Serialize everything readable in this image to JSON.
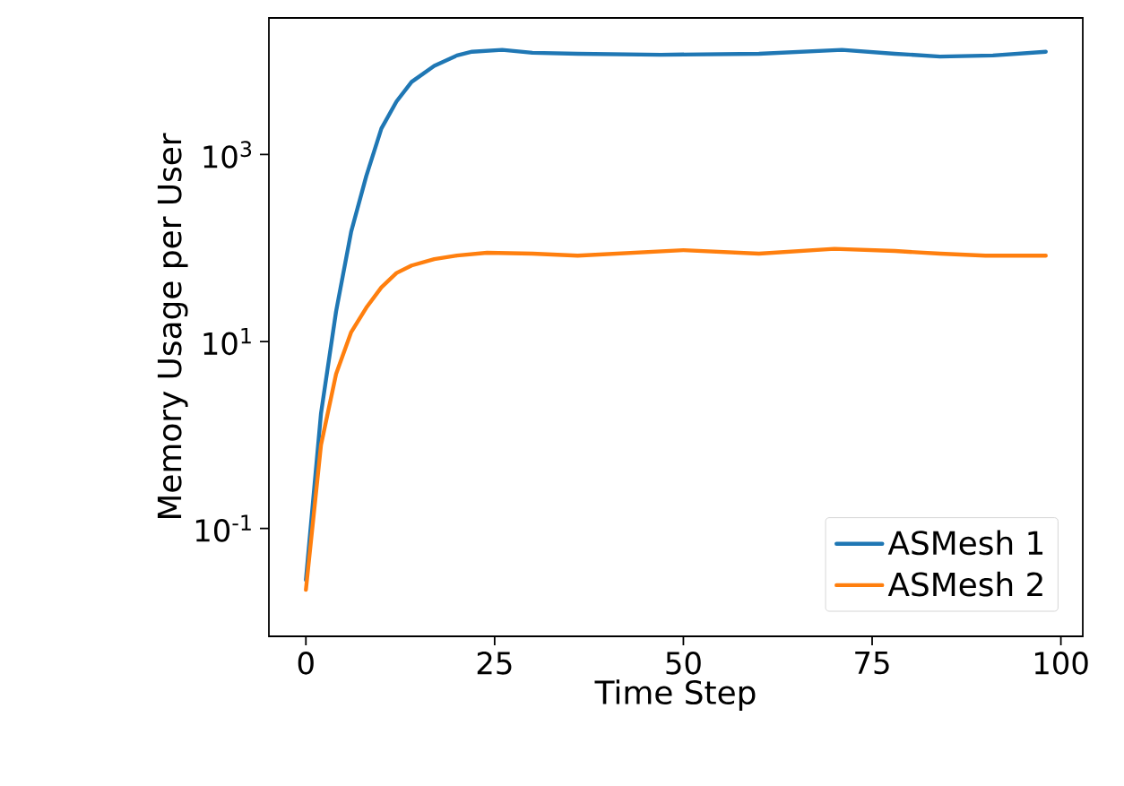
{
  "chart_data": {
    "type": "line",
    "xlabel": "Time Step",
    "ylabel": "Memory Usage per User",
    "log": "y",
    "xlim": [
      -4.9,
      102.9
    ],
    "ylim": [
      0.007,
      29000
    ],
    "xticks": [
      0,
      25,
      50,
      75,
      100
    ],
    "yticks": [
      {
        "value": 0.1,
        "label": "10$^{-1}$"
      },
      {
        "value": 10,
        "label": "10$^{1}$"
      },
      {
        "value": 1000,
        "label": "10$^{3}$"
      }
    ],
    "legend": "bottom right",
    "grid": false,
    "marker": "none",
    "line_style": "solid",
    "series": [
      {
        "name": "ASMesh 1",
        "color": "#1f77b4",
        "x": [
          0,
          2,
          4,
          6,
          8,
          10,
          12,
          14,
          17,
          20,
          22,
          26,
          30,
          36,
          47,
          60,
          71,
          78,
          84,
          91,
          98
        ],
        "values": [
          0.028,
          1.7,
          21,
          150,
          590,
          1900,
          3700,
          6000,
          8900,
          11500,
          12600,
          13200,
          12300,
          12000,
          11700,
          12000,
          13200,
          12000,
          11200,
          11500,
          12600
        ]
      },
      {
        "name": "ASMesh 2",
        "color": "#ff7f0e",
        "x": [
          0,
          2,
          4,
          6,
          8,
          10,
          12,
          14,
          17,
          20,
          24,
          30,
          36,
          50,
          60,
          70,
          78,
          84,
          90,
          98
        ],
        "values": [
          0.022,
          0.78,
          4.5,
          12.6,
          23,
          38,
          54,
          65,
          76,
          83,
          89,
          87,
          83,
          95,
          87,
          98,
          93,
          87,
          83,
          83
        ]
      }
    ]
  }
}
